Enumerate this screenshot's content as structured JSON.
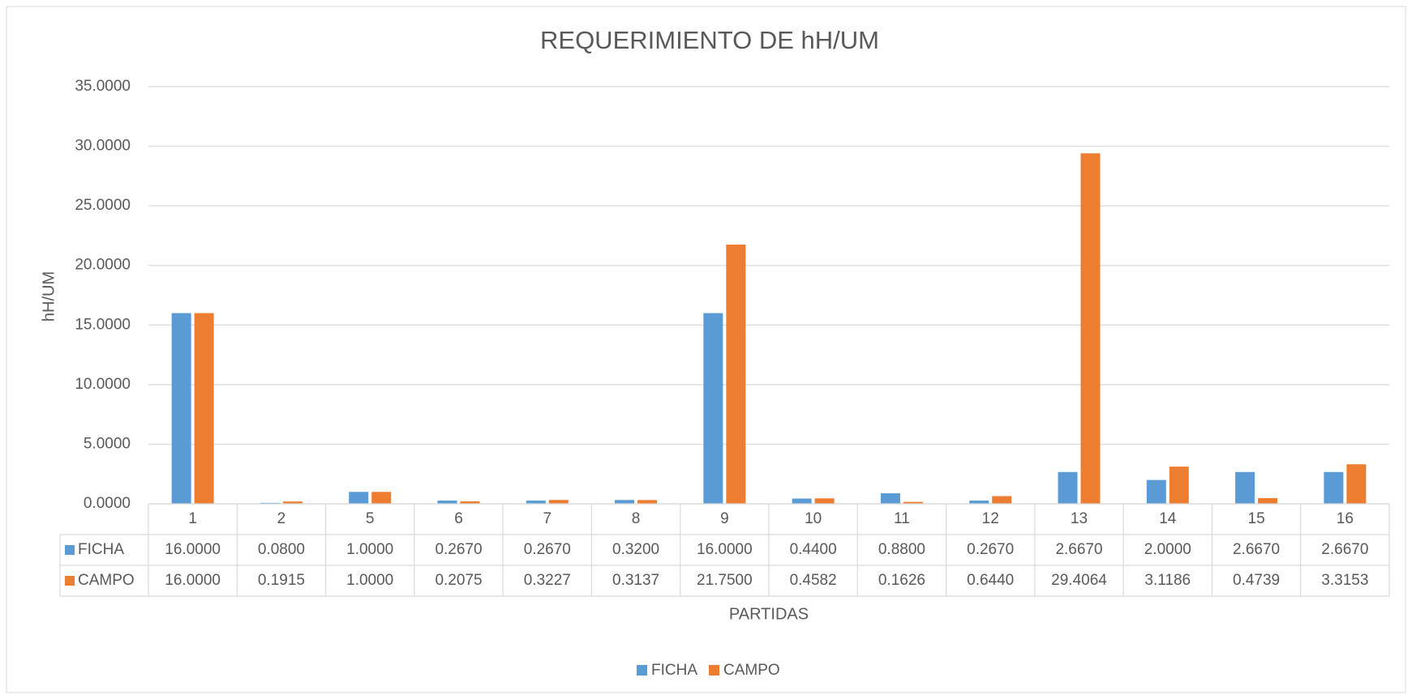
{
  "chart_data": {
    "type": "bar",
    "title": "REQUERIMIENTO DE hH/UM",
    "x_label": "PARTIDAS",
    "y_label": "hH/UM",
    "categories": [
      "1",
      "2",
      "5",
      "6",
      "7",
      "8",
      "9",
      "10",
      "11",
      "12",
      "13",
      "14",
      "15",
      "16"
    ],
    "series": [
      {
        "name": "FICHA",
        "color": "#5b9bd5",
        "values": [
          16,
          0.08,
          1,
          0.267,
          0.267,
          0.32,
          16,
          0.44,
          0.88,
          0.267,
          2.667,
          2,
          2.667,
          2.667
        ],
        "value_labels": [
          "16.0000",
          "0.0800",
          "1.0000",
          "0.2670",
          "0.2670",
          "0.3200",
          "16.0000",
          "0.4400",
          "0.8800",
          "0.2670",
          "2.6670",
          "2.0000",
          "2.6670",
          "2.6670"
        ]
      },
      {
        "name": "CAMPO",
        "color": "#ed7d31",
        "values": [
          16,
          0.1915,
          1,
          0.2075,
          0.3227,
          0.3137,
          21.75,
          0.4582,
          0.1626,
          0.644,
          29.4064,
          3.1186,
          0.4739,
          3.3153
        ],
        "value_labels": [
          "16.0000",
          "0.1915",
          "1.0000",
          "0.2075",
          "0.3227",
          "0.3137",
          "21.7500",
          "0.4582",
          "0.1626",
          "0.6440",
          "29.4064",
          "3.1186",
          "0.4739",
          "3.3153"
        ]
      }
    ],
    "ylim": [
      0,
      35
    ],
    "yticks": [
      {
        "value": 0,
        "label": "0.0000"
      },
      {
        "value": 5,
        "label": "5.0000"
      },
      {
        "value": 10,
        "label": "10.0000"
      },
      {
        "value": 15,
        "label": "15.0000"
      },
      {
        "value": 20,
        "label": "20.0000"
      },
      {
        "value": 25,
        "label": "25.0000"
      },
      {
        "value": 30,
        "label": "30.0000"
      },
      {
        "value": 35,
        "label": "35.0000"
      }
    ],
    "grid": true,
    "legend": "bottom"
  }
}
